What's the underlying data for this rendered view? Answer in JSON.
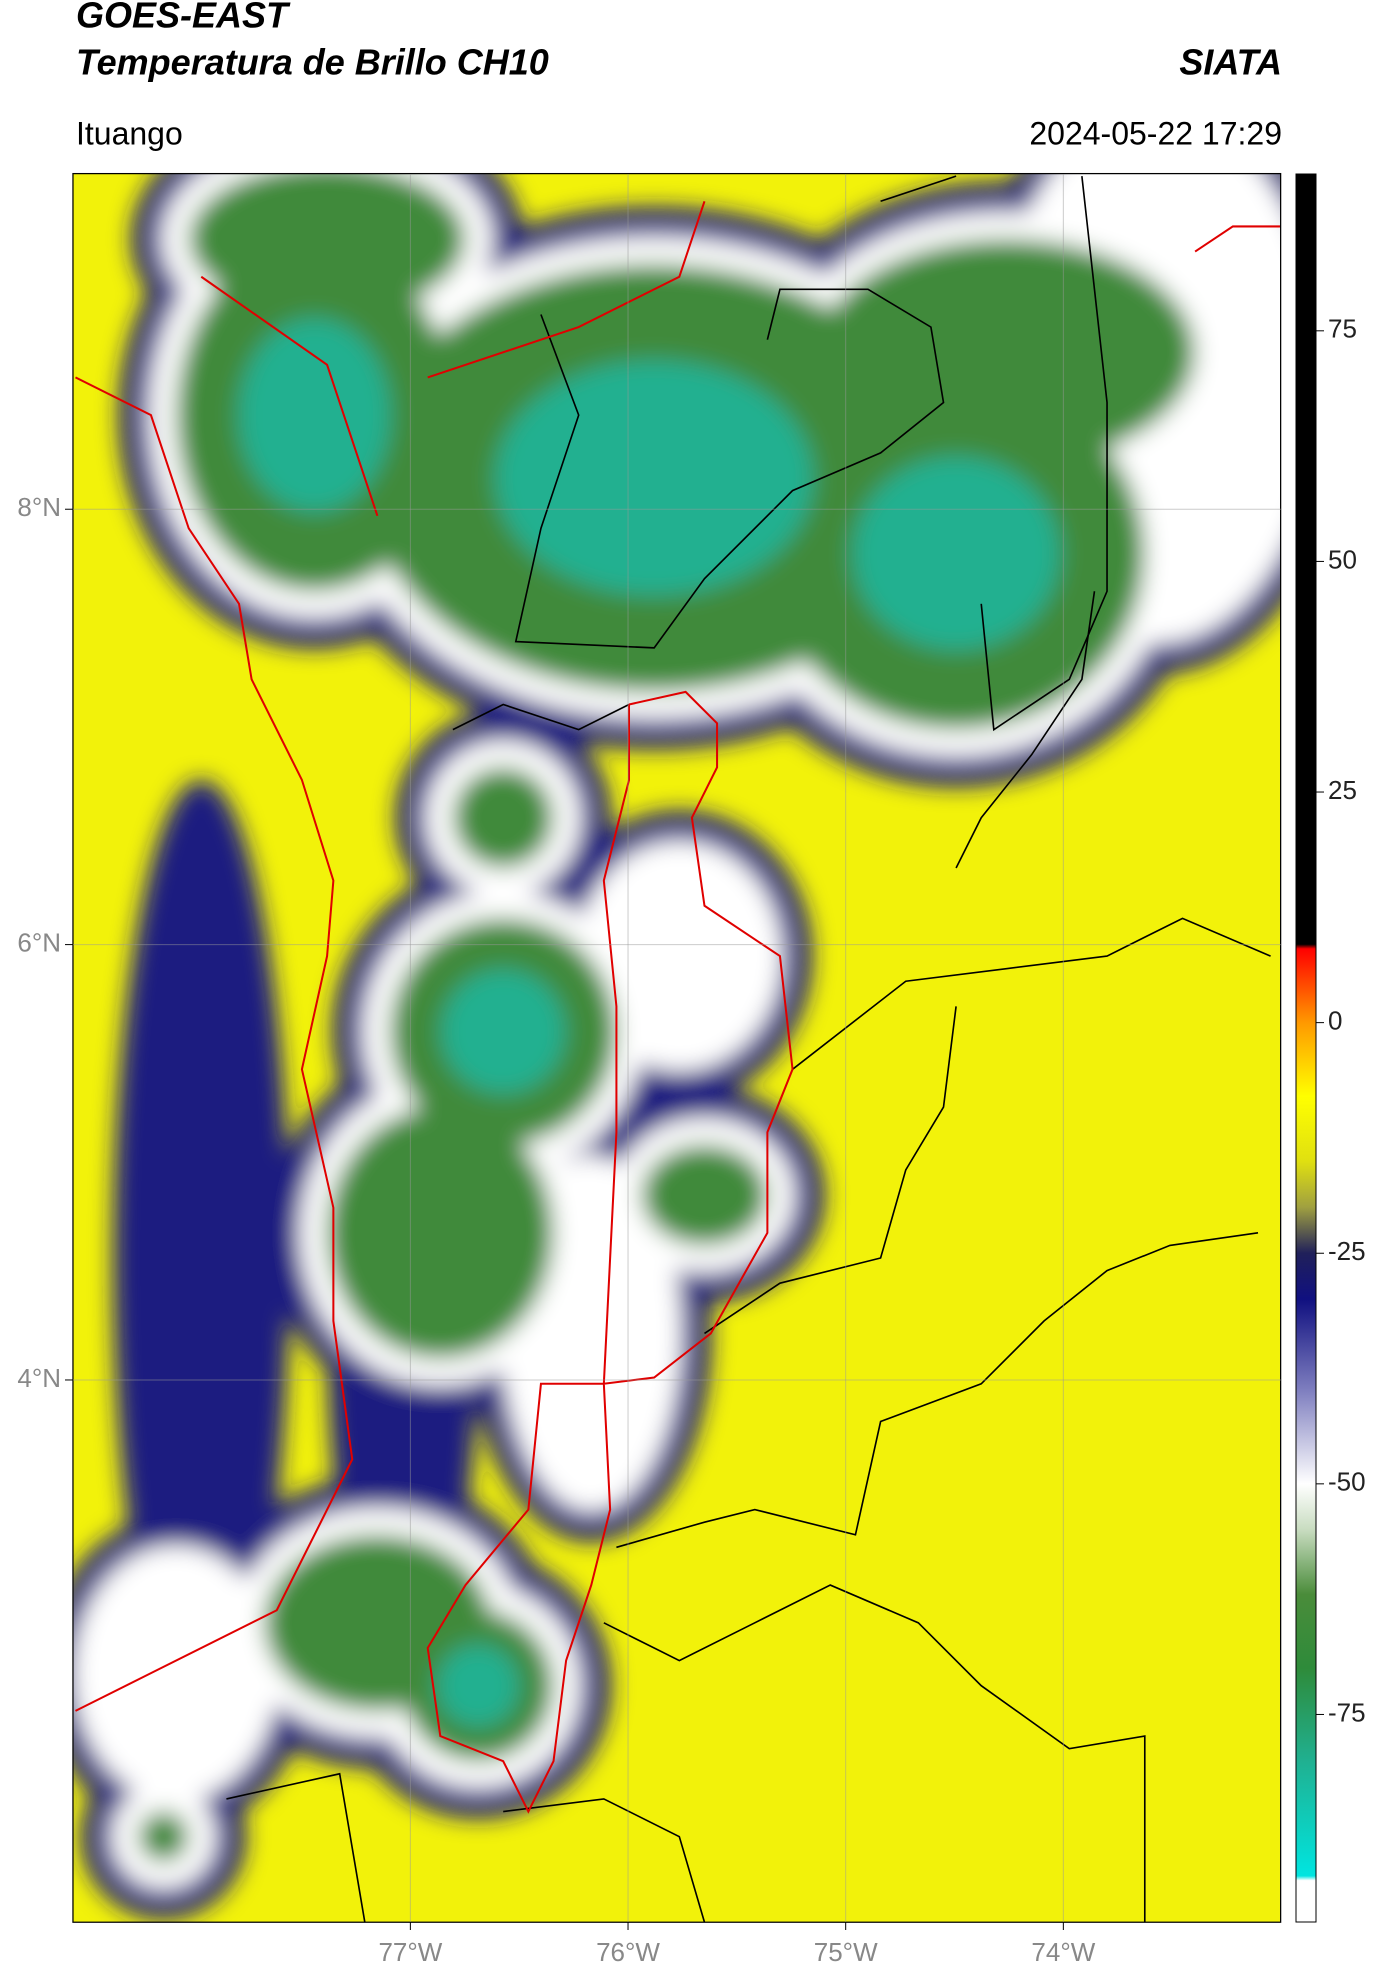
{
  "chart_data": {
    "type": "map",
    "title": "GOES-EAST",
    "subtitle": "Temperatura de Brillo CH10",
    "source": "SIATA",
    "location": "Ituango",
    "datetime": "2024-05-22 17:29",
    "xlim": [
      -78.55,
      -73.0
    ],
    "ylim": [
      1.51,
      9.54
    ],
    "xticks": [
      {
        "value": -77,
        "label": "77°W"
      },
      {
        "value": -76,
        "label": "76°W"
      },
      {
        "value": -75,
        "label": "75°W"
      },
      {
        "value": -74,
        "label": "74°W"
      }
    ],
    "yticks": [
      {
        "value": 4,
        "label": "4°N"
      },
      {
        "value": 6,
        "label": "6°N"
      },
      {
        "value": 8,
        "label": "8°N"
      }
    ],
    "grid": true,
    "colorbar": {
      "lim": [
        -97.5,
        92
      ],
      "ticks": [
        -75,
        -50,
        -25,
        0,
        25,
        50,
        75
      ],
      "stops": [
        {
          "value": -97.5,
          "color": "#ffffff"
        },
        {
          "value": -93,
          "color": "#ffffff"
        },
        {
          "value": -92.5,
          "color": "#00e5e0"
        },
        {
          "value": -80,
          "color": "#20b090"
        },
        {
          "value": -70,
          "color": "#2e8b3a"
        },
        {
          "value": -62,
          "color": "#4a8c3a"
        },
        {
          "value": -55,
          "color": "#c8dcc0"
        },
        {
          "value": -50,
          "color": "#ffffff"
        },
        {
          "value": -40,
          "color": "#8080c0"
        },
        {
          "value": -30,
          "color": "#101080"
        },
        {
          "value": -25,
          "color": "#20205a"
        },
        {
          "value": -20,
          "color": "#a0a040"
        },
        {
          "value": -15,
          "color": "#e0e010"
        },
        {
          "value": -8,
          "color": "#ffff00"
        },
        {
          "value": 0,
          "color": "#ff9900"
        },
        {
          "value": 8,
          "color": "#ff0000"
        },
        {
          "value": 8.5,
          "color": "#000000"
        },
        {
          "value": 92,
          "color": "#000000"
        }
      ]
    }
  }
}
